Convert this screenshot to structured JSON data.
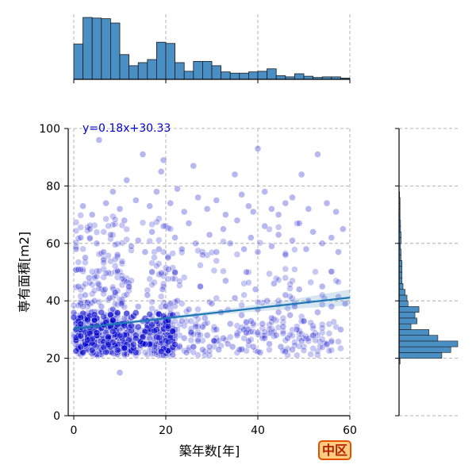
{
  "chart_data": {
    "type": "scatter",
    "xlabel": "築年数[年]",
    "ylabel": "専有面積[m2]",
    "xlim": [
      0,
      60
    ],
    "ylim": [
      0,
      100
    ],
    "x_ticks": [
      "0",
      "20",
      "40",
      "60"
    ],
    "y_ticks": [
      "0",
      "20",
      "40",
      "60",
      "80",
      "100"
    ],
    "grid": true,
    "regression": {
      "label": "y=0.18x+30.33",
      "slope": 0.18,
      "intercept": 30.33,
      "color": "#1f77b4"
    },
    "point_color": "#0000cc",
    "badge": "中区",
    "x_histogram": {
      "bin_width": 2,
      "bin_start": 0,
      "counts": [
        57,
        100,
        99,
        98,
        91,
        40,
        22,
        27,
        32,
        60,
        58,
        27,
        13,
        29,
        29,
        22,
        12,
        10,
        10,
        12,
        13,
        17,
        6,
        4,
        9,
        5,
        3,
        4,
        4,
        2
      ]
    },
    "y_histogram": {
      "bin_width": 2,
      "bin_start": 18,
      "counts": [
        10,
        430,
        520,
        590,
        390,
        300,
        120,
        180,
        160,
        200,
        90,
        80,
        60,
        40,
        30,
        30,
        30,
        30,
        20,
        20,
        15,
        20,
        20,
        15,
        15,
        10,
        10,
        10,
        10,
        5
      ]
    },
    "samples": [
      [
        0.5,
        32
      ],
      [
        0.8,
        24
      ],
      [
        1.0,
        45
      ],
      [
        1.2,
        27
      ],
      [
        1.5,
        35
      ],
      [
        1.8,
        22
      ],
      [
        2.0,
        30
      ],
      [
        2.0,
        38
      ],
      [
        2.3,
        26
      ],
      [
        2.5,
        42
      ],
      [
        2.8,
        23
      ],
      [
        3.0,
        33
      ],
      [
        3.0,
        27
      ],
      [
        3.3,
        48
      ],
      [
        3.5,
        29
      ],
      [
        3.8,
        36
      ],
      [
        4.0,
        25
      ],
      [
        4.0,
        31
      ],
      [
        4.3,
        22
      ],
      [
        4.5,
        40
      ],
      [
        4.8,
        28
      ],
      [
        5.0,
        34
      ],
      [
        5.0,
        24
      ],
      [
        5.3,
        46
      ],
      [
        5.5,
        30
      ],
      [
        5.8,
        26
      ],
      [
        6.0,
        38
      ],
      [
        6.0,
        23
      ],
      [
        6.3,
        32
      ],
      [
        6.5,
        27
      ],
      [
        6.8,
        44
      ],
      [
        7.0,
        29
      ],
      [
        7.0,
        35
      ],
      [
        7.3,
        24
      ],
      [
        7.5,
        31
      ],
      [
        7.8,
        41
      ],
      [
        8.0,
        26
      ],
      [
        8.0,
        33
      ],
      [
        8.3,
        22
      ],
      [
        8.5,
        37
      ],
      [
        8.8,
        28
      ],
      [
        9.0,
        43
      ],
      [
        9.0,
        25
      ],
      [
        9.3,
        30
      ],
      [
        9.5,
        36
      ],
      [
        9.8,
        23
      ],
      [
        10.0,
        32
      ],
      [
        10.3,
        39
      ],
      [
        10.5,
        27
      ],
      [
        10.8,
        24
      ],
      [
        11.0,
        34
      ],
      [
        11.5,
        29
      ],
      [
        12.0,
        45
      ],
      [
        12.5,
        26
      ],
      [
        13.0,
        31
      ],
      [
        13.5,
        23
      ],
      [
        14.0,
        38
      ],
      [
        14.5,
        28
      ],
      [
        15.0,
        33
      ],
      [
        15.5,
        25
      ],
      [
        16.0,
        42
      ],
      [
        16.5,
        27
      ],
      [
        17.0,
        30
      ],
      [
        17.5,
        24
      ],
      [
        18.0,
        36
      ],
      [
        18.5,
        29
      ],
      [
        19.0,
        26
      ],
      [
        19.3,
        44
      ],
      [
        19.6,
        32
      ],
      [
        20.0,
        23
      ],
      [
        20.0,
        38
      ],
      [
        20.3,
        28
      ],
      [
        20.6,
        51
      ],
      [
        21.0,
        35
      ],
      [
        21.5,
        25
      ],
      [
        22.0,
        30
      ],
      [
        22.5,
        40
      ],
      [
        23.0,
        24
      ],
      [
        23.5,
        33
      ],
      [
        24.0,
        27
      ],
      [
        24.5,
        22
      ],
      [
        25.0,
        37
      ],
      [
        25.5,
        29
      ],
      [
        26.0,
        24
      ],
      [
        26.5,
        31
      ],
      [
        27.0,
        26
      ],
      [
        27.5,
        45
      ],
      [
        28.0,
        23
      ],
      [
        28.5,
        34
      ],
      [
        29.0,
        28
      ],
      [
        29.5,
        24
      ],
      [
        30.0,
        39
      ],
      [
        30.5,
        26
      ],
      [
        31.0,
        30
      ],
      [
        31.5,
        23
      ],
      [
        32.0,
        36
      ],
      [
        32.5,
        27
      ],
      [
        33.0,
        47
      ],
      [
        33.5,
        25
      ],
      [
        34.0,
        32
      ],
      [
        34.5,
        24
      ],
      [
        35.0,
        41
      ],
      [
        35.5,
        28
      ],
      [
        36.0,
        23
      ],
      [
        36.5,
        35
      ],
      [
        37.0,
        30
      ],
      [
        37.5,
        50
      ],
      [
        38.0,
        26
      ],
      [
        38.5,
        33
      ],
      [
        39.0,
        24
      ],
      [
        39.5,
        44
      ],
      [
        40.0,
        29
      ],
      [
        40.0,
        37
      ],
      [
        40.5,
        22
      ],
      [
        41.0,
        32
      ],
      [
        41.5,
        27
      ],
      [
        42.0,
        40
      ],
      [
        42.5,
        25
      ],
      [
        43.0,
        34
      ],
      [
        43.5,
        46
      ],
      [
        44.0,
        28
      ],
      [
        44.5,
        36
      ],
      [
        45.0,
        24
      ],
      [
        45.5,
        31
      ],
      [
        46.0,
        42
      ],
      [
        46.5,
        27
      ],
      [
        47.0,
        35
      ],
      [
        47.5,
        23
      ],
      [
        48.0,
        38
      ],
      [
        48.5,
        30
      ],
      [
        49.0,
        44
      ],
      [
        49.5,
        26
      ],
      [
        50.0,
        33
      ],
      [
        51.0,
        40
      ],
      [
        52.0,
        28
      ],
      [
        53.0,
        36
      ],
      [
        54.0,
        45
      ],
      [
        55.0,
        25
      ],
      [
        56.0,
        38
      ],
      [
        58.0,
        30
      ],
      [
        0.5,
        58
      ],
      [
        1.5,
        62
      ],
      [
        2.5,
        55
      ],
      [
        3.5,
        65
      ],
      [
        5.0,
        60
      ],
      [
        6.5,
        57
      ],
      [
        8.0,
        63
      ],
      [
        9.5,
        56
      ],
      [
        11.0,
        68
      ],
      [
        12.5,
        59
      ],
      [
        14.0,
        61
      ],
      [
        15.5,
        57
      ],
      [
        17.0,
        64
      ],
      [
        18.5,
        58
      ],
      [
        19.5,
        66
      ],
      [
        20.5,
        55
      ],
      [
        22.0,
        62
      ],
      [
        23.5,
        58
      ],
      [
        25.0,
        67
      ],
      [
        26.5,
        60
      ],
      [
        28.0,
        56
      ],
      [
        29.5,
        63
      ],
      [
        31.0,
        57
      ],
      [
        32.5,
        65
      ],
      [
        34.0,
        60
      ],
      [
        35.5,
        68
      ],
      [
        37.0,
        58
      ],
      [
        38.5,
        62
      ],
      [
        40.0,
        57
      ],
      [
        41.5,
        66
      ],
      [
        43.0,
        59
      ],
      [
        44.5,
        63
      ],
      [
        46.0,
        56
      ],
      [
        47.5,
        61
      ],
      [
        49.0,
        67
      ],
      [
        50.5,
        58
      ],
      [
        52.0,
        64
      ],
      [
        54.0,
        60
      ],
      [
        56.0,
        62
      ],
      [
        57.5,
        57
      ],
      [
        2.0,
        73
      ],
      [
        4.0,
        70
      ],
      [
        5.5,
        96
      ],
      [
        7.0,
        74
      ],
      [
        8.5,
        78
      ],
      [
        10.0,
        72
      ],
      [
        11.5,
        82
      ],
      [
        13.5,
        75
      ],
      [
        15.0,
        91
      ],
      [
        16.5,
        73
      ],
      [
        18.0,
        78
      ],
      [
        19.0,
        85
      ],
      [
        19.5,
        89
      ],
      [
        21.0,
        74
      ],
      [
        22.5,
        79
      ],
      [
        24.0,
        71
      ],
      [
        26.0,
        87
      ],
      [
        27.0,
        76
      ],
      [
        29.0,
        72
      ],
      [
        31.0,
        75
      ],
      [
        33.0,
        70
      ],
      [
        35.0,
        84
      ],
      [
        36.5,
        77
      ],
      [
        38.0,
        73
      ],
      [
        39.0,
        71
      ],
      [
        40.0,
        93
      ],
      [
        41.5,
        78
      ],
      [
        43.0,
        72
      ],
      [
        44.5,
        70
      ],
      [
        46.0,
        74
      ],
      [
        47.5,
        76
      ],
      [
        49.5,
        84
      ],
      [
        51.0,
        72
      ],
      [
        53.0,
        91
      ],
      [
        55.0,
        74
      ],
      [
        57.0,
        71
      ],
      [
        58.5,
        65
      ],
      [
        59.0,
        39
      ],
      [
        14.0,
        22
      ],
      [
        10.0,
        15
      ]
    ]
  }
}
